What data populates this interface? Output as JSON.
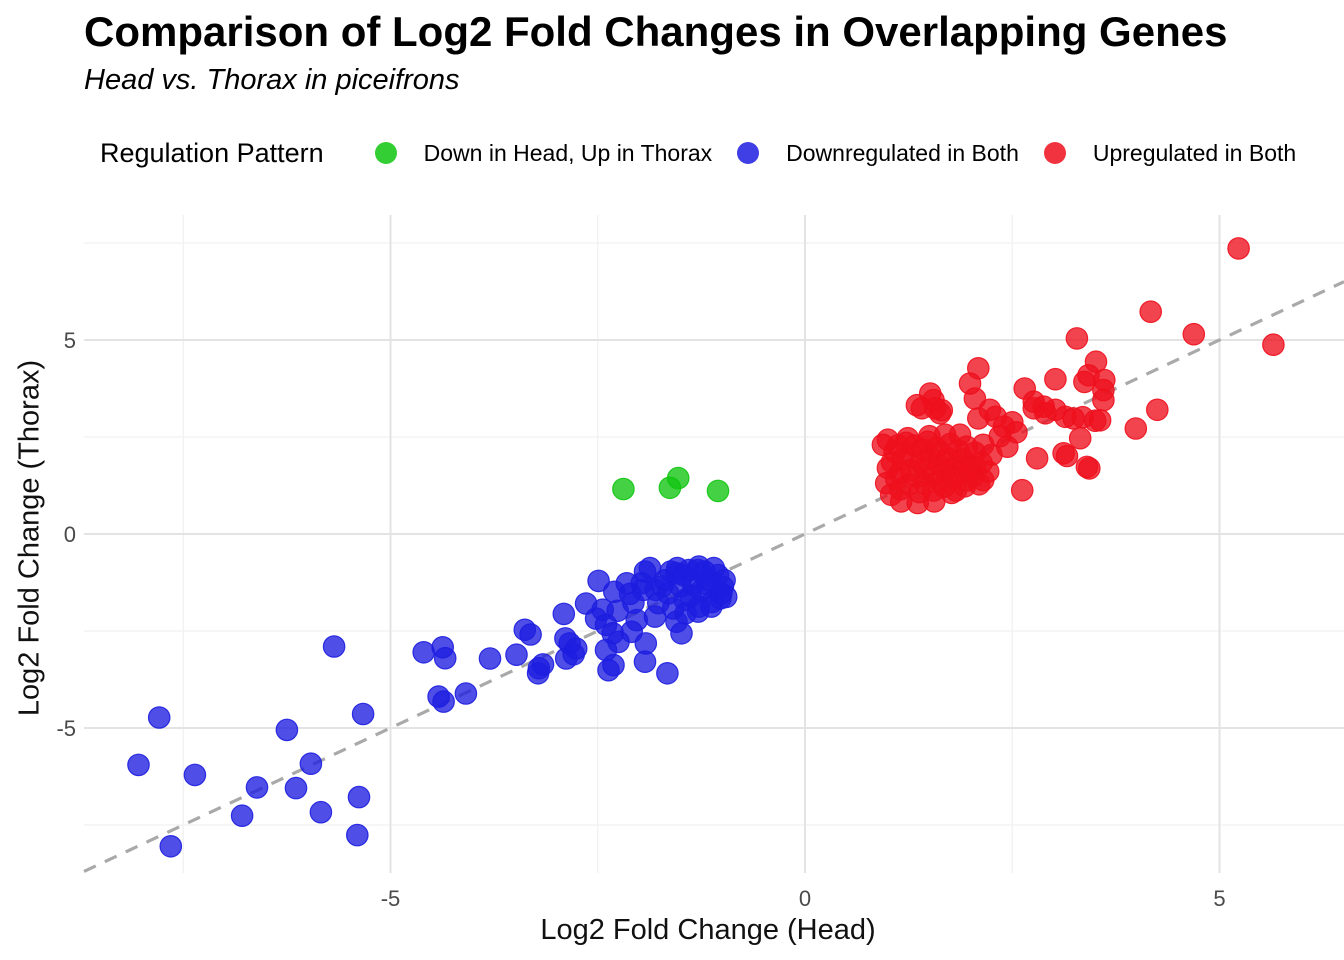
{
  "title": "Comparison of Log2 Fold Changes in Overlapping Genes",
  "subtitle": "Head vs. Thorax in piceifrons",
  "legend": {
    "title": "Regulation Pattern",
    "items": [
      {
        "label": "Down in Head, Up in Thorax",
        "color": "#0fc50f"
      },
      {
        "label": "Downregulated in Both",
        "color": "#1d1de0"
      },
      {
        "label": "Upregulated in Both",
        "color": "#ee0f1d"
      }
    ]
  },
  "chart_data": {
    "type": "scatter",
    "title": "Comparison of Log2 Fold Changes in Overlapping Genes",
    "subtitle": "Head vs. Thorax in piceifrons",
    "xlabel": "Log2 Fold Change (Head)",
    "ylabel": "Log2 Fold Change (Thorax)",
    "xlim": [
      -8.7,
      6.5
    ],
    "ylim": [
      -8.73,
      8.22
    ],
    "x_ticks": [
      -5,
      0,
      5
    ],
    "y_ticks": [
      -5,
      0,
      5
    ],
    "x_minor_ticks": [
      -7.5,
      -2.5,
      2.5
    ],
    "y_minor_ticks": [
      -7.5,
      -2.5,
      2.5,
      7.5
    ],
    "grid": true,
    "legend_position": "top",
    "reference_line": {
      "type": "identity",
      "slope": 1,
      "intercept": 0,
      "style": "dashed",
      "color": "#a9a9a9"
    },
    "series": [
      {
        "name": "Down in Head, Up in Thorax",
        "color": "#0fc50f",
        "points": [
          [
            -2.19,
            1.16
          ],
          [
            -1.63,
            1.19
          ],
          [
            -1.53,
            1.44
          ],
          [
            -1.05,
            1.11
          ]
        ]
      },
      {
        "name": "Downregulated in Both",
        "color": "#1d1de0",
        "points": [
          [
            -8.04,
            -5.95
          ],
          [
            -7.79,
            -4.73
          ],
          [
            -7.65,
            -8.05
          ],
          [
            -7.36,
            -6.21
          ],
          [
            -6.79,
            -7.26
          ],
          [
            -6.61,
            -6.53
          ],
          [
            -6.25,
            -5.05
          ],
          [
            -6.14,
            -6.55
          ],
          [
            -5.96,
            -5.92
          ],
          [
            -5.84,
            -7.17
          ],
          [
            -5.68,
            -2.9
          ],
          [
            -5.4,
            -7.76
          ],
          [
            -5.38,
            -6.78
          ],
          [
            -5.33,
            -4.64
          ],
          [
            -4.6,
            -3.05
          ],
          [
            -4.42,
            -4.19
          ],
          [
            -4.37,
            -2.92
          ],
          [
            -4.36,
            -4.32
          ],
          [
            -4.34,
            -3.2
          ],
          [
            -4.09,
            -4.11
          ],
          [
            -3.8,
            -3.21
          ],
          [
            -3.48,
            -3.11
          ],
          [
            -3.38,
            -2.47
          ],
          [
            -3.31,
            -2.59
          ],
          [
            -3.22,
            -3.59
          ],
          [
            -3.21,
            -3.46
          ],
          [
            -3.16,
            -3.36
          ],
          [
            -2.91,
            -2.06
          ],
          [
            -2.89,
            -2.69
          ],
          [
            -2.88,
            -3.21
          ],
          [
            -2.84,
            -2.82
          ],
          [
            -2.79,
            -3.1
          ],
          [
            -2.76,
            -2.95
          ],
          [
            -2.64,
            -1.79
          ],
          [
            -2.52,
            -2.18
          ],
          [
            -2.49,
            -1.21
          ],
          [
            -2.44,
            -1.95
          ],
          [
            -2.4,
            -2.34
          ],
          [
            -2.4,
            -2.99
          ],
          [
            -2.37,
            -3.51
          ],
          [
            -2.32,
            -2.56
          ],
          [
            -2.31,
            -3.38
          ],
          [
            -2.3,
            -1.49
          ],
          [
            -2.26,
            -1.98
          ],
          [
            -2.25,
            -2.78
          ],
          [
            -2.15,
            -1.27
          ],
          [
            -2.11,
            -1.54
          ],
          [
            -2.09,
            -2.52
          ],
          [
            -2.07,
            -1.77
          ],
          [
            -2.03,
            -2.22
          ],
          [
            -1.97,
            -1.27
          ],
          [
            -1.95,
            -1.44
          ],
          [
            -1.93,
            -3.29
          ],
          [
            -1.93,
            -0.97
          ],
          [
            -1.92,
            -2.82
          ],
          [
            -1.87,
            -0.88
          ],
          [
            -1.81,
            -2.13
          ],
          [
            -1.8,
            -1.44
          ],
          [
            -1.77,
            -1.78
          ],
          [
            -1.72,
            -1.35
          ],
          [
            -1.69,
            -1.19
          ],
          [
            -1.66,
            -3.59
          ],
          [
            -1.65,
            -1.53
          ],
          [
            -1.62,
            -0.97
          ],
          [
            -1.59,
            -1.92
          ],
          [
            -1.55,
            -1.01
          ],
          [
            -1.55,
            -2.26
          ],
          [
            -1.54,
            -0.88
          ],
          [
            -1.5,
            -1.35
          ],
          [
            -1.49,
            -2.56
          ],
          [
            -1.47,
            -1.06
          ],
          [
            -1.45,
            -1.7
          ],
          [
            -1.44,
            -2.04
          ],
          [
            -1.4,
            -0.93
          ],
          [
            -1.38,
            -1.6
          ],
          [
            -1.35,
            -1.31
          ],
          [
            -1.29,
            -0.93
          ],
          [
            -1.29,
            -2.0
          ],
          [
            -1.28,
            -0.84
          ],
          [
            -1.28,
            -1.87
          ],
          [
            -1.25,
            -1.45
          ],
          [
            -1.21,
            -0.97
          ],
          [
            -1.18,
            -1.3
          ],
          [
            -1.16,
            -1.19
          ],
          [
            -1.13,
            -1.87
          ],
          [
            -1.12,
            -1.75
          ],
          [
            -1.1,
            -0.88
          ],
          [
            -1.05,
            -1.06
          ],
          [
            -1.02,
            -1.66
          ],
          [
            -1.01,
            -1.53
          ],
          [
            -0.99,
            -1.36
          ],
          [
            -0.97,
            -1.19
          ],
          [
            -0.95,
            -1.62
          ]
        ]
      },
      {
        "name": "Upregulated in Both",
        "color": "#ee0f1d",
        "points": [
          [
            1.0,
            2.43
          ],
          [
            0.94,
            2.3
          ],
          [
            1.24,
            2.47
          ],
          [
            1.5,
            2.52
          ],
          [
            1.69,
            2.56
          ],
          [
            1.87,
            2.56
          ],
          [
            1.0,
            1.7
          ],
          [
            0.98,
            1.31
          ],
          [
            1.04,
            1.01
          ],
          [
            1.16,
            0.84
          ],
          [
            1.36,
            0.8
          ],
          [
            1.56,
            0.84
          ],
          [
            1.77,
            1.06
          ],
          [
            1.93,
            1.23
          ],
          [
            2.03,
            1.49
          ],
          [
            2.13,
            1.83
          ],
          [
            2.21,
            1.61
          ],
          [
            2.25,
            2.04
          ],
          [
            1.05,
            1.85
          ],
          [
            1.08,
            2.12
          ],
          [
            1.1,
            1.42
          ],
          [
            1.12,
            2.28
          ],
          [
            1.15,
            1.15
          ],
          [
            1.15,
            1.58
          ],
          [
            1.18,
            1.92
          ],
          [
            1.22,
            2.35
          ],
          [
            1.25,
            1.28
          ],
          [
            1.28,
            1.65
          ],
          [
            1.3,
            2.02
          ],
          [
            1.32,
            2.28
          ],
          [
            1.35,
            1.48
          ],
          [
            1.38,
            1.08
          ],
          [
            1.4,
            1.85
          ],
          [
            1.42,
            2.18
          ],
          [
            1.45,
            1.3
          ],
          [
            1.45,
            1.68
          ],
          [
            1.48,
            2.38
          ],
          [
            1.52,
            1.95
          ],
          [
            1.55,
            1.12
          ],
          [
            1.55,
            1.52
          ],
          [
            1.58,
            2.22
          ],
          [
            1.62,
            1.38
          ],
          [
            1.62,
            1.78
          ],
          [
            1.65,
            2.05
          ],
          [
            1.68,
            1.22
          ],
          [
            1.7,
            1.62
          ],
          [
            1.72,
            1.95
          ],
          [
            1.75,
            2.32
          ],
          [
            1.78,
            1.45
          ],
          [
            1.82,
            1.12
          ],
          [
            1.82,
            1.75
          ],
          [
            1.85,
            2.15
          ],
          [
            1.88,
            1.58
          ],
          [
            1.9,
            1.92
          ],
          [
            1.95,
            1.38
          ],
          [
            1.95,
            2.25
          ],
          [
            2.0,
            1.72
          ],
          [
            2.05,
            2.1
          ],
          [
            2.1,
            1.28
          ],
          [
            2.15,
            2.3
          ],
          [
            1.35,
            3.32
          ],
          [
            1.41,
            3.24
          ],
          [
            1.51,
            3.62
          ],
          [
            1.55,
            3.45
          ],
          [
            1.57,
            3.24
          ],
          [
            1.63,
            3.11
          ],
          [
            1.65,
            3.19
          ],
          [
            1.99,
            3.88
          ],
          [
            2.05,
            3.49
          ],
          [
            2.09,
            4.27
          ],
          [
            2.09,
            2.98
          ],
          [
            2.23,
            3.2
          ],
          [
            2.3,
            3.02
          ],
          [
            2.35,
            2.52
          ],
          [
            2.4,
            2.77
          ],
          [
            2.44,
            2.25
          ],
          [
            2.5,
            2.88
          ],
          [
            2.55,
            2.62
          ],
          [
            2.62,
            1.13
          ],
          [
            2.65,
            3.75
          ],
          [
            2.76,
            3.41
          ],
          [
            2.76,
            3.24
          ],
          [
            2.88,
            3.28
          ],
          [
            2.9,
            3.11
          ],
          [
            3.02,
            3.99
          ],
          [
            3.02,
            3.2
          ],
          [
            3.12,
            2.08
          ],
          [
            3.14,
            3.02
          ],
          [
            3.16,
            2.01
          ],
          [
            3.24,
            2.98
          ],
          [
            3.28,
            5.04
          ],
          [
            3.32,
            2.47
          ],
          [
            3.35,
            3.01
          ],
          [
            3.37,
            3.92
          ],
          [
            3.4,
            1.73
          ],
          [
            3.42,
            4.09
          ],
          [
            3.43,
            1.69
          ],
          [
            3.5,
            2.92
          ],
          [
            3.51,
            4.44
          ],
          [
            3.56,
            2.93
          ],
          [
            3.6,
            3.45
          ],
          [
            3.6,
            3.71
          ],
          [
            3.61,
            3.97
          ],
          [
            3.99,
            2.72
          ],
          [
            4.17,
            5.73
          ],
          [
            4.25,
            3.2
          ],
          [
            4.69,
            5.15
          ],
          [
            5.23,
            7.36
          ],
          [
            5.65,
            4.88
          ],
          [
            2.05,
            1.73
          ],
          [
            2.15,
            1.39
          ],
          [
            2.8,
            1.95
          ]
        ]
      }
    ]
  },
  "colors": {
    "background": "#ffffff",
    "grid_major": "#e3e3e3",
    "grid_minor": "#f1f1f1",
    "axis_text": "#4a4a4a",
    "reference_line": "#a9a9a9"
  }
}
